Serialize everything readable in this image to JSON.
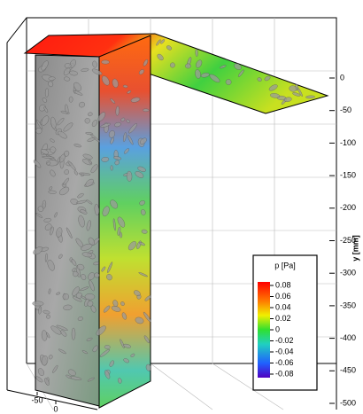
{
  "chart_data": {
    "type": "contour3d",
    "ylabel": "y [mm]",
    "ylim": [
      -500,
      0
    ],
    "yticks": [
      0,
      -50,
      -100,
      -150,
      -200,
      -250,
      -300,
      -350,
      -400,
      -450,
      -500
    ],
    "xticks": [
      -50,
      0
    ],
    "colorbar": {
      "title": "p [Pa]",
      "zlim": [
        -0.08,
        0.08
      ],
      "zticks": [
        0.08,
        0.06,
        0.04,
        0.02,
        0,
        -0.02,
        -0.04,
        -0.06,
        -0.08
      ]
    }
  }
}
